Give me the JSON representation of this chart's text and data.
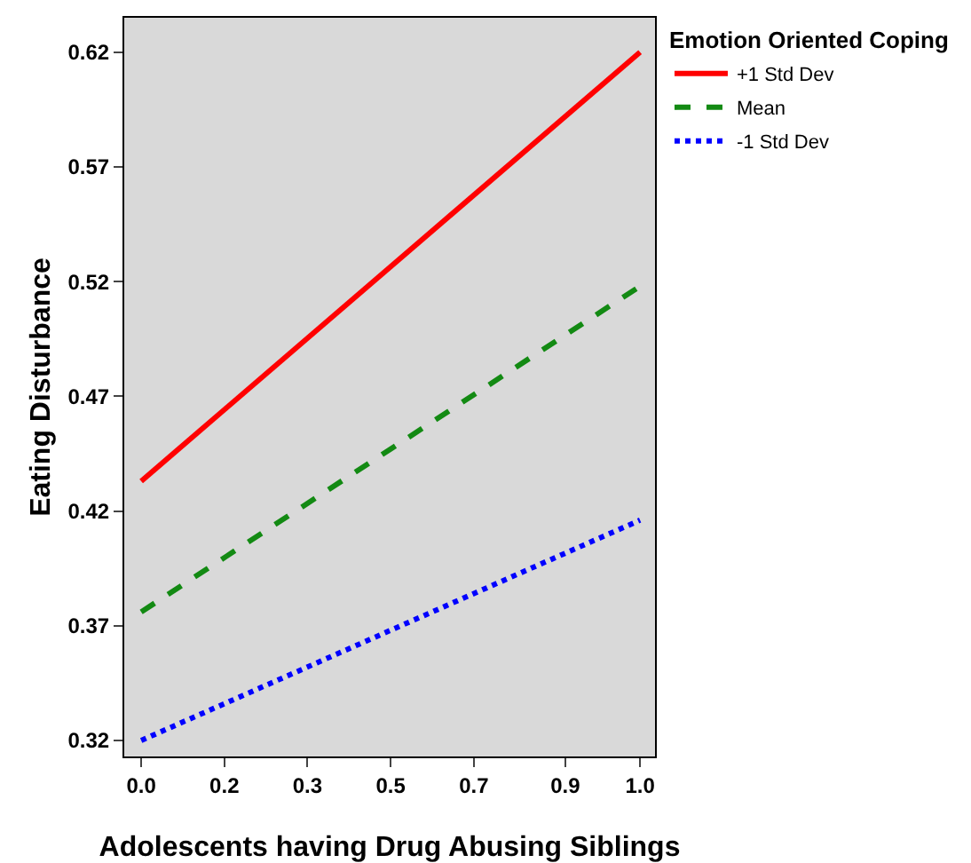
{
  "chart_data": {
    "type": "line",
    "xlabel": "Adolescents having Drug Abusing Siblings",
    "ylabel": "Eating Disturbance",
    "legend_title": "Emotion Oriented Coping",
    "x": [
      0,
      1
    ],
    "series": [
      {
        "name": "+1 Std Dev",
        "color": "#ff0000",
        "values": [
          0.433,
          0.62
        ],
        "line_style": "solid"
      },
      {
        "name": "Mean",
        "color": "#138a13",
        "values": [
          0.376,
          0.518
        ],
        "line_style": "dashed"
      },
      {
        "name": "-1 Std Dev",
        "color": "#0000ff",
        "values": [
          0.32,
          0.416
        ],
        "line_style": "dotted"
      }
    ],
    "xlim": [
      -0.034,
      1.03
    ],
    "xticks": [
      {
        "value": 0,
        "label": "0.0"
      },
      {
        "value": 0.1667,
        "label": "0.2"
      },
      {
        "value": 0.3333,
        "label": "0.3"
      },
      {
        "value": 0.5,
        "label": "0.5"
      },
      {
        "value": 0.6667,
        "label": "0.7"
      },
      {
        "value": 0.85,
        "label": "0.9"
      },
      {
        "value": 1,
        "label": "1.0"
      }
    ],
    "ylim": [
      0.313,
      0.635
    ],
    "yticks": [
      0.32,
      0.37,
      0.42,
      0.47,
      0.52,
      0.57,
      0.62
    ],
    "grid": false,
    "legend": "top right",
    "marker": "none"
  }
}
